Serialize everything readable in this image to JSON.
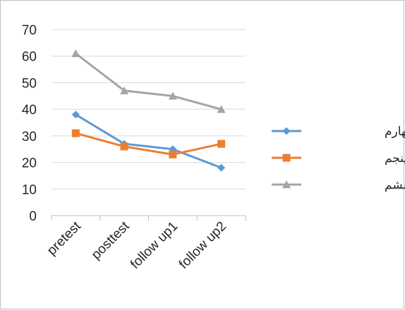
{
  "chart_data": {
    "type": "line",
    "title": "",
    "xlabel": "",
    "ylabel": "",
    "categories": [
      "pretest",
      "posttest",
      "follow up1",
      "follow up2"
    ],
    "ylim": [
      0,
      70
    ],
    "yticks": [
      0,
      10,
      20,
      30,
      40,
      50,
      60,
      70
    ],
    "grid": true,
    "legend_position": "right",
    "series": [
      {
        "name": "بیمار چهارم",
        "values": [
          38,
          27,
          25,
          18
        ],
        "color": "#5b9bd5",
        "marker": "diamond"
      },
      {
        "name": "بیمار پنجم",
        "values": [
          31,
          26,
          23,
          27
        ],
        "color": "#ed7d31",
        "marker": "square"
      },
      {
        "name": "بیمار ششم",
        "values": [
          61,
          47,
          45,
          40
        ],
        "color": "#a5a5a5",
        "marker": "triangle"
      }
    ]
  }
}
